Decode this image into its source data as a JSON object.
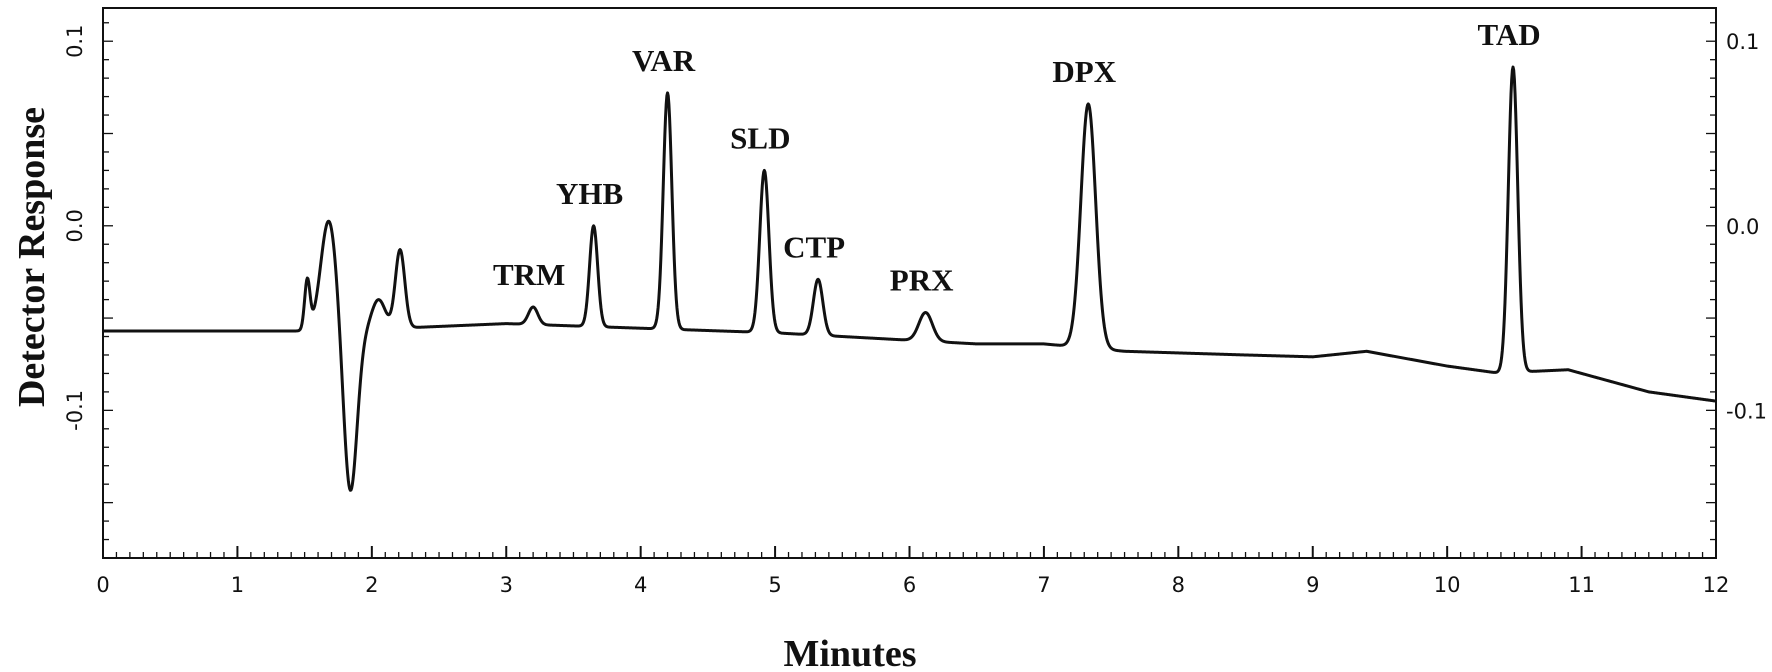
{
  "chart_data": {
    "type": "line",
    "xlabel": "Minutes",
    "ylabel": "Detector Response",
    "xlim": [
      0,
      12
    ],
    "ylim": [
      -0.18,
      0.118
    ],
    "x_ticks": [
      0,
      1,
      2,
      3,
      4,
      5,
      6,
      7,
      8,
      9,
      10,
      11,
      12
    ],
    "y_ticks": [
      -0.1,
      0.0,
      0.1
    ],
    "y_tick_labels": [
      "-0.1",
      "0.0",
      "0.1"
    ],
    "right_y_ticks": [
      -0.1,
      0.0,
      0.1
    ],
    "right_y_tick_labels": [
      "-0.1",
      "0.0",
      "0.1"
    ],
    "grid": false,
    "legend": "none",
    "baseline": [
      [
        0.0,
        -0.057
      ],
      [
        1.48,
        -0.057
      ],
      [
        2.35,
        -0.055
      ],
      [
        3.0,
        -0.053
      ],
      [
        5.0,
        -0.058
      ],
      [
        6.5,
        -0.064
      ],
      [
        7.0,
        -0.064
      ],
      [
        7.6,
        -0.068
      ],
      [
        8.5,
        -0.07
      ],
      [
        9.0,
        -0.071
      ],
      [
        9.4,
        -0.068
      ],
      [
        10.0,
        -0.076
      ],
      [
        10.4,
        -0.08
      ],
      [
        10.6,
        -0.079
      ],
      [
        10.9,
        -0.078
      ],
      [
        11.5,
        -0.09
      ],
      [
        12.0,
        -0.095
      ]
    ],
    "disturbance": [
      {
        "x": 1.52,
        "y": -0.03,
        "w": 0.02
      },
      {
        "x": 1.68,
        "y": 0.003,
        "w": 0.06
      },
      {
        "x": 1.84,
        "y": -0.145,
        "w": 0.05
      },
      {
        "x": 2.05,
        "y": -0.04,
        "w": 0.05
      },
      {
        "x": 2.21,
        "y": -0.013,
        "w": 0.035
      }
    ],
    "peaks": [
      {
        "name": "TRM",
        "x": 3.2,
        "y": -0.044,
        "w": 0.035
      },
      {
        "name": "YHB",
        "x": 3.65,
        "y": 0.0,
        "w": 0.03
      },
      {
        "name": "VAR",
        "x": 4.2,
        "y": 0.072,
        "w": 0.032
      },
      {
        "name": "SLD",
        "x": 4.92,
        "y": 0.03,
        "w": 0.034
      },
      {
        "name": "CTP",
        "x": 5.32,
        "y": -0.029,
        "w": 0.035
      },
      {
        "name": "PRX",
        "x": 6.12,
        "y": -0.047,
        "w": 0.05
      },
      {
        "name": "DPX",
        "x": 7.33,
        "y": 0.066,
        "w": 0.055
      },
      {
        "name": "TAD",
        "x": 10.49,
        "y": 0.086,
        "w": 0.035
      }
    ]
  }
}
